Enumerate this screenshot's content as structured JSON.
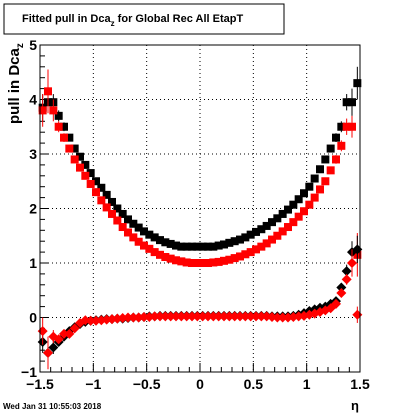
{
  "title": {
    "main": "Fitted pull in Dca",
    "sub": "z",
    "rest": " for Global Rec All EtapT"
  },
  "footer": {
    "timestamp": "Wed Jan 31 10:55:03 2018"
  },
  "chart_data": {
    "type": "scatter",
    "xlabel": "η",
    "ylabel": {
      "main": "pull in Dca",
      "sub": "z"
    },
    "xlim": [
      -1.5,
      1.5
    ],
    "ylim": [
      -1,
      5
    ],
    "xticks": [
      -1.5,
      -1,
      -0.5,
      0,
      0.5,
      1,
      1.5
    ],
    "xtick_labels": [
      "−1.5",
      "−1",
      "−0.5",
      "0",
      "0.5",
      "1",
      "1.5"
    ],
    "yticks": [
      -1,
      0,
      1,
      2,
      3,
      4,
      5
    ],
    "ytick_labels": [
      "−1",
      "0",
      "1",
      "2",
      "3",
      "4",
      "5"
    ],
    "grid": true,
    "series": [
      {
        "marker": "square",
        "color": "#000000",
        "x": [
          -1.475,
          -1.425,
          -1.375,
          -1.325,
          -1.275,
          -1.225,
          -1.175,
          -1.125,
          -1.075,
          -1.025,
          -0.975,
          -0.925,
          -0.875,
          -0.825,
          -0.775,
          -0.725,
          -0.675,
          -0.625,
          -0.575,
          -0.525,
          -0.475,
          -0.425,
          -0.375,
          -0.325,
          -0.275,
          -0.225,
          -0.175,
          -0.125,
          -0.075,
          -0.025,
          0.025,
          0.075,
          0.125,
          0.175,
          0.225,
          0.275,
          0.325,
          0.375,
          0.425,
          0.475,
          0.525,
          0.575,
          0.625,
          0.675,
          0.725,
          0.775,
          0.825,
          0.875,
          0.925,
          0.975,
          1.025,
          1.075,
          1.125,
          1.175,
          1.225,
          1.275,
          1.325,
          1.375,
          1.425,
          1.475
        ],
        "y": [
          3.85,
          3.95,
          3.95,
          3.7,
          3.5,
          3.3,
          3.1,
          2.95,
          2.8,
          2.65,
          2.5,
          2.38,
          2.25,
          2.12,
          2.0,
          1.9,
          1.8,
          1.72,
          1.65,
          1.58,
          1.52,
          1.47,
          1.42,
          1.38,
          1.35,
          1.32,
          1.3,
          1.3,
          1.3,
          1.3,
          1.3,
          1.3,
          1.3,
          1.32,
          1.34,
          1.37,
          1.4,
          1.43,
          1.47,
          1.52,
          1.57,
          1.62,
          1.68,
          1.75,
          1.82,
          1.9,
          1.98,
          2.07,
          2.17,
          2.28,
          2.4,
          2.55,
          2.72,
          2.9,
          3.1,
          3.3,
          3.5,
          3.95,
          3.95,
          4.3
        ],
        "yerr": [
          0.25,
          0.2,
          0.15,
          0.1,
          0.08,
          0.06,
          0.05,
          0.04,
          0.04,
          0.03,
          0.03,
          0.03,
          0.03,
          0.03,
          0.02,
          0.02,
          0.02,
          0.02,
          0.02,
          0.02,
          0.02,
          0.02,
          0.02,
          0.02,
          0.02,
          0.02,
          0.02,
          0.02,
          0.02,
          0.02,
          0.02,
          0.02,
          0.02,
          0.02,
          0.02,
          0.02,
          0.02,
          0.02,
          0.02,
          0.02,
          0.02,
          0.02,
          0.02,
          0.02,
          0.02,
          0.02,
          0.03,
          0.03,
          0.03,
          0.03,
          0.03,
          0.04,
          0.04,
          0.05,
          0.06,
          0.08,
          0.1,
          0.15,
          0.25,
          0.3
        ]
      },
      {
        "marker": "square",
        "color": "#ff0000",
        "x": [
          -1.475,
          -1.425,
          -1.375,
          -1.325,
          -1.275,
          -1.225,
          -1.175,
          -1.125,
          -1.075,
          -1.025,
          -0.975,
          -0.925,
          -0.875,
          -0.825,
          -0.775,
          -0.725,
          -0.675,
          -0.625,
          -0.575,
          -0.525,
          -0.475,
          -0.425,
          -0.375,
          -0.325,
          -0.275,
          -0.225,
          -0.175,
          -0.125,
          -0.075,
          -0.025,
          0.025,
          0.075,
          0.125,
          0.175,
          0.225,
          0.275,
          0.325,
          0.375,
          0.425,
          0.475,
          0.525,
          0.575,
          0.625,
          0.675,
          0.725,
          0.775,
          0.825,
          0.875,
          0.925,
          0.975,
          1.025,
          1.075,
          1.125,
          1.175,
          1.225,
          1.275,
          1.325,
          1.375,
          1.425,
          1.475
        ],
        "y": [
          3.8,
          4.15,
          3.8,
          3.5,
          3.3,
          3.1,
          2.9,
          2.75,
          2.6,
          2.45,
          2.3,
          2.15,
          2.02,
          1.9,
          1.78,
          1.66,
          1.56,
          1.47,
          1.39,
          1.32,
          1.26,
          1.2,
          1.15,
          1.11,
          1.08,
          1.05,
          1.03,
          1.01,
          1.0,
          1.0,
          1.0,
          1.0,
          1.01,
          1.02,
          1.04,
          1.06,
          1.09,
          1.12,
          1.16,
          1.2,
          1.25,
          1.3,
          1.36,
          1.43,
          1.5,
          1.58,
          1.66,
          1.75,
          1.85,
          1.95,
          2.07,
          2.2,
          2.35,
          2.5,
          2.7,
          2.9,
          3.15,
          3.5,
          3.5,
          1.15
        ],
        "yerr": [
          0.3,
          0.4,
          0.2,
          0.1,
          0.08,
          0.06,
          0.05,
          0.04,
          0.04,
          0.03,
          0.03,
          0.03,
          0.03,
          0.03,
          0.02,
          0.02,
          0.02,
          0.02,
          0.02,
          0.02,
          0.02,
          0.02,
          0.02,
          0.02,
          0.02,
          0.02,
          0.02,
          0.02,
          0.02,
          0.02,
          0.02,
          0.02,
          0.02,
          0.02,
          0.02,
          0.02,
          0.02,
          0.02,
          0.02,
          0.02,
          0.02,
          0.02,
          0.02,
          0.02,
          0.02,
          0.02,
          0.03,
          0.03,
          0.03,
          0.03,
          0.03,
          0.04,
          0.04,
          0.05,
          0.06,
          0.08,
          0.1,
          0.15,
          0.2,
          0.4
        ]
      },
      {
        "marker": "diamond",
        "color": "#000000",
        "x": [
          -1.475,
          -1.425,
          -1.375,
          -1.325,
          -1.275,
          -1.225,
          -1.175,
          -1.125,
          -1.075,
          -1.025,
          -0.975,
          -0.925,
          -0.875,
          -0.825,
          -0.775,
          -0.725,
          -0.675,
          -0.625,
          -0.575,
          -0.525,
          -0.475,
          -0.425,
          -0.375,
          -0.325,
          -0.275,
          -0.225,
          -0.175,
          -0.125,
          -0.075,
          -0.025,
          0.025,
          0.075,
          0.125,
          0.175,
          0.225,
          0.275,
          0.325,
          0.375,
          0.425,
          0.475,
          0.525,
          0.575,
          0.625,
          0.675,
          0.725,
          0.775,
          0.825,
          0.875,
          0.925,
          0.975,
          1.025,
          1.075,
          1.125,
          1.175,
          1.225,
          1.275,
          1.325,
          1.375,
          1.425,
          1.475
        ],
        "y": [
          -0.45,
          -0.65,
          -0.55,
          -0.45,
          -0.35,
          -0.25,
          -0.18,
          -0.12,
          -0.08,
          -0.06,
          -0.05,
          -0.04,
          -0.03,
          -0.03,
          -0.02,
          -0.02,
          -0.01,
          0.0,
          0.0,
          0.01,
          0.02,
          0.02,
          0.03,
          0.03,
          0.03,
          0.03,
          0.03,
          0.03,
          0.03,
          0.03,
          0.03,
          0.03,
          0.03,
          0.03,
          0.03,
          0.03,
          0.03,
          0.03,
          0.03,
          0.03,
          0.03,
          0.03,
          0.03,
          0.02,
          0.02,
          0.02,
          0.02,
          0.03,
          0.05,
          0.08,
          0.12,
          0.15,
          0.18,
          0.2,
          0.25,
          0.3,
          0.55,
          0.85,
          1.2,
          1.25
        ],
        "yerr": [
          0.2,
          0.18,
          0.12,
          0.08,
          0.06,
          0.05,
          0.04,
          0.03,
          0.03,
          0.02,
          0.02,
          0.02,
          0.02,
          0.02,
          0.02,
          0.02,
          0.02,
          0.02,
          0.02,
          0.02,
          0.02,
          0.02,
          0.02,
          0.02,
          0.02,
          0.02,
          0.02,
          0.02,
          0.02,
          0.02,
          0.02,
          0.02,
          0.02,
          0.02,
          0.02,
          0.02,
          0.02,
          0.02,
          0.02,
          0.02,
          0.02,
          0.02,
          0.02,
          0.02,
          0.02,
          0.02,
          0.02,
          0.02,
          0.02,
          0.02,
          0.02,
          0.03,
          0.03,
          0.04,
          0.05,
          0.06,
          0.08,
          0.12,
          0.2,
          0.25
        ]
      },
      {
        "marker": "diamond",
        "color": "#ff0000",
        "x": [
          -1.475,
          -1.425,
          -1.375,
          -1.325,
          -1.275,
          -1.225,
          -1.175,
          -1.125,
          -1.075,
          -1.025,
          -0.975,
          -0.925,
          -0.875,
          -0.825,
          -0.775,
          -0.725,
          -0.675,
          -0.625,
          -0.575,
          -0.525,
          -0.475,
          -0.425,
          -0.375,
          -0.325,
          -0.275,
          -0.225,
          -0.175,
          -0.125,
          -0.075,
          -0.025,
          0.025,
          0.075,
          0.125,
          0.175,
          0.225,
          0.275,
          0.325,
          0.375,
          0.425,
          0.475,
          0.525,
          0.575,
          0.625,
          0.675,
          0.725,
          0.775,
          0.825,
          0.875,
          0.925,
          0.975,
          1.025,
          1.075,
          1.125,
          1.175,
          1.225,
          1.275,
          1.325,
          1.375,
          1.425,
          1.475
        ],
        "y": [
          -0.25,
          -0.65,
          -0.35,
          -0.4,
          -0.3,
          -0.3,
          -0.2,
          -0.1,
          -0.05,
          -0.06,
          -0.06,
          -0.05,
          -0.04,
          -0.03,
          -0.02,
          -0.01,
          0.0,
          0.0,
          0.0,
          0.01,
          0.01,
          0.02,
          0.02,
          0.02,
          0.02,
          0.02,
          0.02,
          0.02,
          0.02,
          0.02,
          0.02,
          0.02,
          0.02,
          0.02,
          0.02,
          0.02,
          0.02,
          0.02,
          0.02,
          0.02,
          0.02,
          0.02,
          0.02,
          0.01,
          0.0,
          0.0,
          0.0,
          0.01,
          0.02,
          0.03,
          0.05,
          0.07,
          0.1,
          0.13,
          0.17,
          0.25,
          0.45,
          0.7,
          1.0,
          0.05
        ],
        "yerr": [
          0.25,
          0.3,
          0.12,
          0.08,
          0.06,
          0.05,
          0.04,
          0.03,
          0.03,
          0.02,
          0.02,
          0.02,
          0.02,
          0.02,
          0.02,
          0.02,
          0.02,
          0.02,
          0.02,
          0.02,
          0.02,
          0.02,
          0.02,
          0.02,
          0.02,
          0.02,
          0.02,
          0.02,
          0.02,
          0.02,
          0.02,
          0.02,
          0.02,
          0.02,
          0.02,
          0.02,
          0.02,
          0.02,
          0.02,
          0.02,
          0.02,
          0.02,
          0.02,
          0.02,
          0.02,
          0.02,
          0.02,
          0.02,
          0.02,
          0.02,
          0.02,
          0.03,
          0.03,
          0.04,
          0.05,
          0.06,
          0.08,
          0.1,
          0.25,
          0.15
        ]
      }
    ]
  }
}
